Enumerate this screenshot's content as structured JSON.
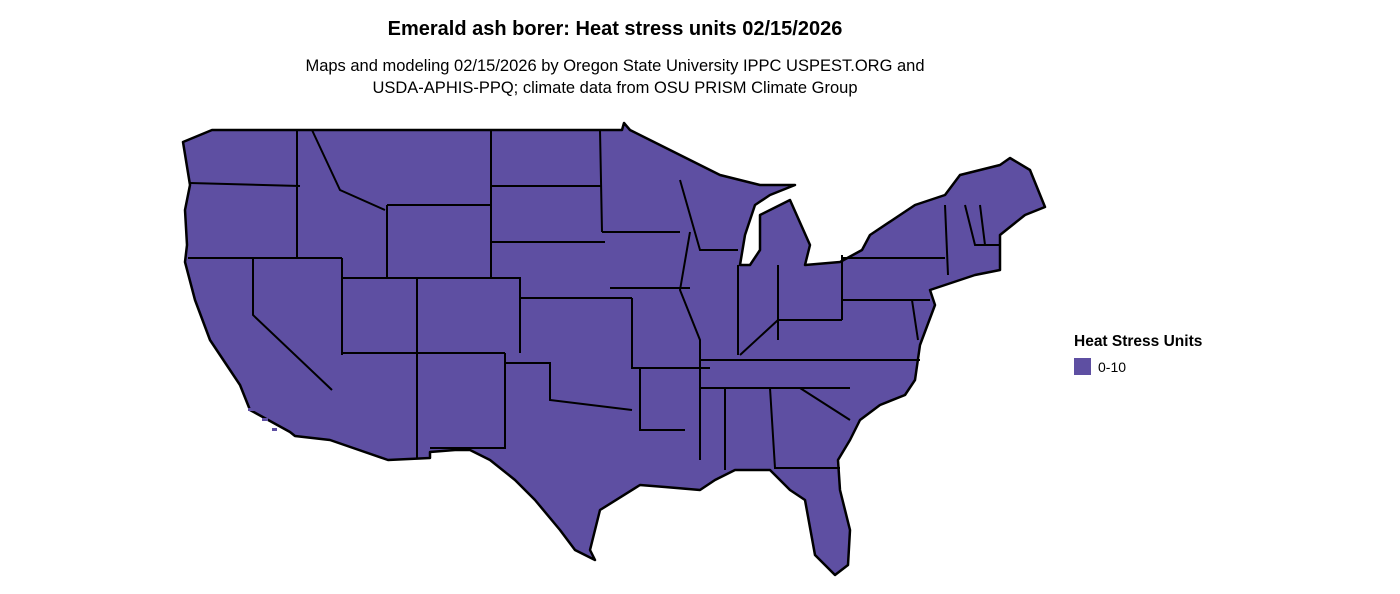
{
  "title": "Emerald ash borer: Heat stress units 02/15/2026",
  "subtitle_line1": "Maps and modeling 02/15/2026 by Oregon State University IPPC USPEST.ORG and",
  "subtitle_line2": "USDA-APHIS-PPQ; climate data from OSU PRISM Climate Group",
  "map": {
    "region": "Contiguous United States",
    "fill_color": "#5e4fa2",
    "border_color": "#000000"
  },
  "legend": {
    "title": "Heat Stress Units",
    "items": [
      {
        "label": "0-10",
        "color": "#5e4fa2"
      }
    ]
  }
}
